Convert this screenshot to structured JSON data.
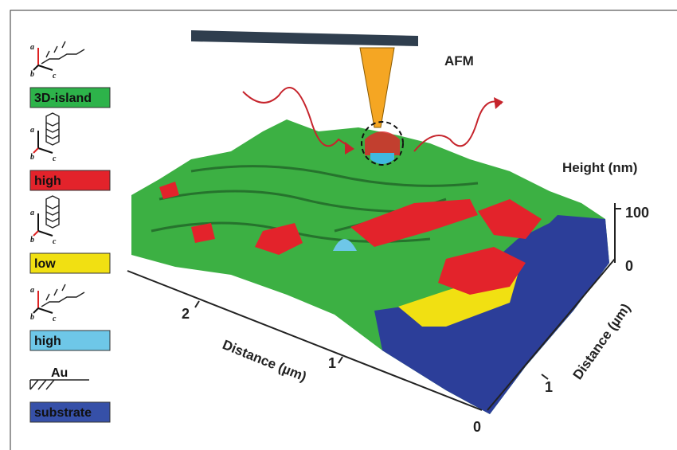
{
  "legend": [
    {
      "axes": [
        "a",
        "b",
        "c"
      ],
      "label": "3D-island"
    },
    {
      "axes": [
        "a",
        "b",
        "c"
      ],
      "label": "high"
    },
    {
      "axes": [
        "a",
        "b",
        "c"
      ],
      "label": "low"
    },
    {
      "axes": [
        "a",
        "b",
        "c"
      ],
      "label": "high"
    },
    {
      "icon_label": "Au",
      "label": "substrate"
    }
  ],
  "labels": {
    "afm": "AFM",
    "height_axis": "Height (nm)",
    "distance_axis_left": "Distance (µm)",
    "distance_axis_right": "Distance (µm)"
  },
  "ticks": {
    "height": [
      100,
      0
    ],
    "distance_left": [
      2,
      1,
      0
    ],
    "distance_right": [
      1
    ]
  }
}
